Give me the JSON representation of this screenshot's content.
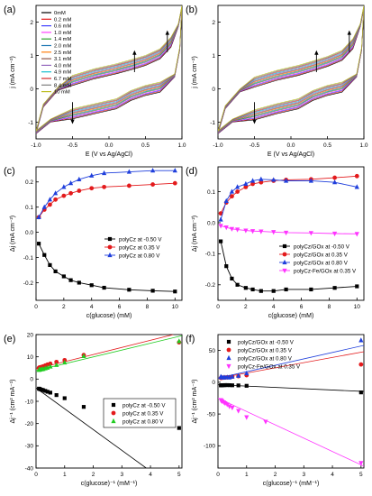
{
  "colors": {
    "black": "#000000",
    "red": "#e31a1c",
    "blue": "#1f3fdc",
    "green": "#22cc22",
    "magenta": "#ff33ff",
    "cv": [
      "#000000",
      "#e41a1c",
      "#4040ff",
      "#ff40ff",
      "#2ca02c",
      "#1f77b4",
      "#ff7f0e",
      "#8c564b",
      "#9467bd",
      "#17becf",
      "#d62728",
      "#7f7f7f",
      "#bcbd22",
      "#e377c2"
    ]
  },
  "chart_data": [
    {
      "panel": "(a)",
      "type": "line",
      "xlabel": "E (V vs Ag/AgCl)",
      "ylabel": "j (mA cm⁻²)",
      "xlim": [
        -1.0,
        1.0
      ],
      "ylim": [
        -1.5,
        2.5
      ],
      "xticks": [
        -1.0,
        -0.5,
        0.0,
        0.5,
        1.0
      ],
      "yticks": [
        -1,
        0,
        1,
        2
      ],
      "legend": [
        "0mM",
        "0.2 mM",
        "0.6 mM",
        "1.0 mM",
        "1.4 mM",
        "2.0 mM",
        "2.5 mM",
        "3.1 mM",
        "4.0 mM",
        "4.9 mM",
        "6.7 mM",
        "8.4 mM",
        "10 mM"
      ],
      "legend_position": "top-left",
      "anodic_curve": [
        [
          -1.0,
          -1.3
        ],
        [
          -0.9,
          -0.5
        ],
        [
          -0.7,
          0.0
        ],
        [
          -0.5,
          0.25
        ],
        [
          -0.2,
          0.45
        ],
        [
          0.1,
          0.6
        ],
        [
          0.3,
          0.72
        ],
        [
          0.5,
          0.85
        ],
        [
          0.7,
          1.05
        ],
        [
          0.85,
          1.4
        ],
        [
          0.95,
          1.9
        ],
        [
          1.0,
          2.45
        ]
      ],
      "cathodic_curve": [
        [
          1.0,
          2.45
        ],
        [
          0.97,
          1.2
        ],
        [
          0.9,
          0.4
        ],
        [
          0.7,
          0.05
        ],
        [
          0.5,
          -0.05
        ],
        [
          0.3,
          -0.2
        ],
        [
          0.1,
          -0.45
        ],
        [
          -0.2,
          -0.6
        ],
        [
          -0.5,
          -0.75
        ],
        [
          -0.8,
          -0.95
        ],
        [
          -1.0,
          -1.3
        ]
      ],
      "arrows": [
        {
          "x": -0.5,
          "direction": "down"
        },
        {
          "x": 0.35,
          "direction": "up"
        },
        {
          "x": 0.8,
          "direction": "up"
        }
      ]
    },
    {
      "panel": "(b)",
      "type": "line",
      "xlabel": "E (V vs Ag/AgCl)",
      "ylabel": "j (mA cm⁻²)",
      "xlim": [
        -1.0,
        1.0
      ],
      "ylim": [
        -1.5,
        2.5
      ],
      "xticks": [
        -1.0,
        -0.5,
        0.0,
        0.5,
        1.0
      ],
      "yticks": [
        -1,
        0,
        1,
        2
      ],
      "anodic_curve": [
        [
          -1.0,
          -1.3
        ],
        [
          -0.9,
          -0.55
        ],
        [
          -0.7,
          -0.05
        ],
        [
          -0.5,
          0.2
        ],
        [
          -0.2,
          0.4
        ],
        [
          0.1,
          0.55
        ],
        [
          0.3,
          0.68
        ],
        [
          0.5,
          0.82
        ],
        [
          0.7,
          1.0
        ],
        [
          0.85,
          1.35
        ],
        [
          0.95,
          1.9
        ],
        [
          1.0,
          2.45
        ]
      ],
      "cathodic_curve": [
        [
          1.0,
          2.45
        ],
        [
          0.97,
          1.2
        ],
        [
          0.9,
          0.4
        ],
        [
          0.7,
          0.05
        ],
        [
          0.5,
          -0.05
        ],
        [
          0.3,
          -0.2
        ],
        [
          0.1,
          -0.45
        ],
        [
          -0.2,
          -0.6
        ],
        [
          -0.5,
          -0.78
        ],
        [
          -0.8,
          -0.95
        ],
        [
          -1.0,
          -1.3
        ]
      ],
      "arrows": [
        {
          "x": -0.5,
          "direction": "down"
        },
        {
          "x": 0.35,
          "direction": "up"
        },
        {
          "x": 0.8,
          "direction": "up"
        }
      ]
    },
    {
      "panel": "(c)",
      "type": "line",
      "xlabel": "c(glucose) (mM)",
      "ylabel": "Δj (mA cm⁻²)",
      "xlim": [
        0,
        10.5
      ],
      "ylim": [
        -0.27,
        0.26
      ],
      "xticks": [
        0,
        2,
        4,
        6,
        8,
        10
      ],
      "yticks": [
        -0.2,
        -0.1,
        0.0,
        0.1,
        0.2
      ],
      "x": [
        0.2,
        0.6,
        1.0,
        1.4,
        2.0,
        2.5,
        3.1,
        4.0,
        4.9,
        6.7,
        8.4,
        10
      ],
      "series": [
        {
          "name": "polyCz at -0.50 V",
          "marker": "square",
          "color": "#000000",
          "values": [
            -0.045,
            -0.09,
            -0.13,
            -0.155,
            -0.175,
            -0.19,
            -0.2,
            -0.21,
            -0.22,
            -0.228,
            -0.232,
            -0.235
          ]
        },
        {
          "name": "polyCz at 0.35 V",
          "marker": "circle",
          "color": "#e31a1c",
          "values": [
            0.06,
            0.09,
            0.11,
            0.13,
            0.145,
            0.155,
            0.165,
            0.175,
            0.18,
            0.185,
            0.19,
            0.195
          ]
        },
        {
          "name": "polyCz at 0.80 V",
          "marker": "triangle-up",
          "color": "#1f3fdc",
          "values": [
            0.06,
            0.1,
            0.13,
            0.155,
            0.18,
            0.195,
            0.21,
            0.225,
            0.235,
            0.24,
            0.245,
            0.245
          ]
        }
      ],
      "legend_position": "right"
    },
    {
      "panel": "(d)",
      "type": "line",
      "xlabel": "c(glucose) (mM)",
      "ylabel": "Δj (mA cm⁻²)",
      "xlim": [
        0,
        10.5
      ],
      "ylim": [
        -0.25,
        0.18
      ],
      "xticks": [
        0,
        2,
        4,
        6,
        8,
        10
      ],
      "yticks": [
        -0.2,
        -0.1,
        0.0,
        0.1
      ],
      "x": [
        0.2,
        0.6,
        1.0,
        1.4,
        2.0,
        2.5,
        3.1,
        4.0,
        4.9,
        6.7,
        8.4,
        10
      ],
      "series": [
        {
          "name": "polyCz/GOx at -0.50 V",
          "marker": "square",
          "color": "#000000",
          "values": [
            -0.06,
            -0.14,
            -0.18,
            -0.2,
            -0.21,
            -0.215,
            -0.22,
            -0.22,
            -0.215,
            -0.215,
            -0.21,
            -0.205
          ]
        },
        {
          "name": "polyCz/GOx at 0.35 V",
          "marker": "circle",
          "color": "#e31a1c",
          "values": [
            0.03,
            0.065,
            0.085,
            0.1,
            0.115,
            0.125,
            0.13,
            0.135,
            0.138,
            0.14,
            0.145,
            0.15
          ]
        },
        {
          "name": "polyCz/GOx at 0.80 V",
          "marker": "triangle-up",
          "color": "#1f3fdc",
          "values": [
            0.01,
            0.07,
            0.1,
            0.115,
            0.125,
            0.135,
            0.14,
            0.138,
            0.135,
            0.135,
            0.13,
            0.115
          ]
        },
        {
          "name": "polyCz-Fe/GOx at 0.35 V",
          "marker": "triangle-down",
          "color": "#ff33ff",
          "values": [
            -0.01,
            -0.015,
            -0.02,
            -0.022,
            -0.025,
            -0.027,
            -0.028,
            -0.03,
            -0.032,
            -0.033,
            -0.035,
            -0.036
          ]
        }
      ],
      "legend_position": "bottom-right"
    },
    {
      "panel": "(e)",
      "type": "scatter",
      "xlabel": "c(glucose)⁻¹ (mM⁻¹)",
      "ylabel": "Δj⁻¹ (cm² mA⁻¹)",
      "xlim": [
        0,
        5.1
      ],
      "ylim": [
        -40,
        20
      ],
      "xticks": [
        0,
        1,
        2,
        3,
        4,
        5
      ],
      "yticks": [
        -40,
        -30,
        -20,
        -10,
        0,
        10,
        20
      ],
      "series": [
        {
          "name": "polyCz at -0.50 V",
          "marker": "square",
          "color": "#000000",
          "x": [
            0.1,
            0.119,
            0.149,
            0.204,
            0.25,
            0.323,
            0.4,
            0.5,
            0.714,
            1.0,
            1.667,
            5.0
          ],
          "y": [
            -4.3,
            -4.4,
            -4.6,
            -4.8,
            -5.0,
            -5.3,
            -5.7,
            -6.1,
            -7.2,
            -8.6,
            -12.5,
            -22.0
          ],
          "fit": [
            [
              0,
              -4.0
            ],
            [
              3.85,
              -40.0
            ]
          ]
        },
        {
          "name": "polyCz at 0.35 V",
          "marker": "circle",
          "color": "#e31a1c",
          "x": [
            0.1,
            0.119,
            0.149,
            0.204,
            0.25,
            0.323,
            0.4,
            0.5,
            0.714,
            1.0,
            1.667,
            5.0
          ],
          "y": [
            5.0,
            5.2,
            5.3,
            5.5,
            5.7,
            6.1,
            6.5,
            6.9,
            7.7,
            8.5,
            10.8,
            16.5
          ],
          "fit": [
            [
              0,
              4.6
            ],
            [
              4.8,
              20.0
            ]
          ]
        },
        {
          "name": "polyCz at 0.80 V",
          "marker": "triangle-up",
          "color": "#22cc22",
          "x": [
            0.1,
            0.119,
            0.149,
            0.204,
            0.25,
            0.323,
            0.4,
            0.5,
            0.714,
            1.0,
            1.667,
            5.0
          ],
          "y": [
            4.1,
            4.2,
            4.3,
            4.4,
            4.5,
            4.8,
            5.1,
            5.6,
            6.3,
            7.4,
            10.3,
            17.0
          ],
          "fit": [
            [
              0,
              3.8
            ],
            [
              5.1,
              19.5
            ]
          ]
        }
      ],
      "legend_position": "right"
    },
    {
      "panel": "(f)",
      "type": "scatter",
      "xlabel": "c(glucose)⁻¹ (mM⁻¹)",
      "ylabel": "Δj⁻¹ (cm² mA⁻¹)",
      "xlim": [
        0,
        5.1
      ],
      "ylim": [
        -135,
        75
      ],
      "xticks": [
        0,
        1,
        2,
        3,
        4,
        5
      ],
      "yticks": [
        -100,
        -50,
        0,
        50
      ],
      "series": [
        {
          "name": "polyCz/GOx at -0.50 V",
          "marker": "square",
          "color": "#000000",
          "x": [
            0.1,
            0.119,
            0.149,
            0.204,
            0.25,
            0.323,
            0.4,
            0.5,
            0.714,
            1.0,
            5.0
          ],
          "y": [
            -4.9,
            -4.8,
            -4.7,
            -4.7,
            -4.5,
            -4.5,
            -4.6,
            -4.8,
            -5.0,
            -5.6,
            -16.0
          ],
          "fit": [
            [
              0,
              -4.0
            ],
            [
              5.1,
              -14.5
            ]
          ]
        },
        {
          "name": "polyCz/GOx at 0.35 V",
          "marker": "circle",
          "color": "#e31a1c",
          "x": [
            0.1,
            0.119,
            0.149,
            0.204,
            0.25,
            0.323,
            0.4,
            0.5,
            0.714,
            1.0,
            5.0
          ],
          "y": [
            6.7,
            6.9,
            7.1,
            7.2,
            7.4,
            7.7,
            8.0,
            8.7,
            9.5,
            11.0,
            28.0
          ],
          "fit": [
            [
              0,
              6.3
            ],
            [
              5.1,
              48.0
            ]
          ]
        },
        {
          "name": "polyCz/GOx at 0.80 V",
          "marker": "triangle-up",
          "color": "#1f3fdc",
          "x": [
            0.1,
            0.119,
            0.149,
            0.204,
            0.25,
            0.323,
            0.4,
            0.5,
            0.714,
            1.0,
            5.0
          ],
          "y": [
            8.7,
            7.7,
            7.3,
            7.4,
            7.5,
            7.8,
            7.4,
            8.7,
            10.0,
            14.0,
            66.0
          ],
          "fit": [
            [
              0,
              6.5
            ],
            [
              5.1,
              58.0
            ]
          ]
        },
        {
          "name": "polyCz-Fe/GOx at 0.35 V",
          "marker": "triangle-down",
          "color": "#ff33ff",
          "x": [
            0.1,
            0.119,
            0.149,
            0.204,
            0.25,
            0.323,
            0.4,
            0.5,
            0.714,
            1.0,
            1.667,
            5.0
          ],
          "y": [
            -28.0,
            -29.0,
            -30.0,
            -31.5,
            -33.0,
            -35.0,
            -38.0,
            -40.0,
            -45.0,
            -55.0,
            -62.0,
            -127.0
          ],
          "fit": [
            [
              0,
              -25.0
            ],
            [
              5.1,
              -132.0
            ]
          ]
        }
      ],
      "legend_position": "top-left"
    }
  ]
}
